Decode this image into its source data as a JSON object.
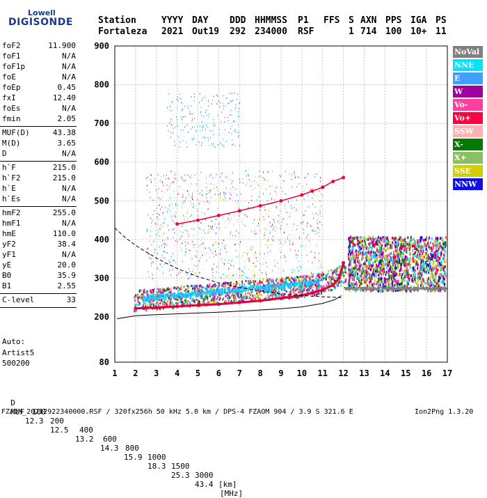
{
  "logo": {
    "top": "Lowell",
    "main": "DIGISONDE"
  },
  "header": {
    "line1": [
      "Station",
      "YYYY",
      "DAY",
      "DDD",
      "HHMMSS",
      "P1",
      "FFS",
      "S",
      "AXN",
      "PPS",
      "IGA",
      "PS"
    ],
    "line2": [
      "Fortaleza",
      "2021",
      "Out19",
      "292",
      "234000",
      "RSF",
      "",
      "1",
      "714",
      "100",
      "10+",
      "11"
    ]
  },
  "params": [
    {
      "group": 1,
      "name": "foF2",
      "value": "11.900"
    },
    {
      "group": 1,
      "name": "foF1",
      "value": "N/A"
    },
    {
      "group": 1,
      "name": "foF1p",
      "value": "N/A"
    },
    {
      "group": 1,
      "name": "foE",
      "value": "N/A"
    },
    {
      "group": 1,
      "name": "foEp",
      "value": "0.45"
    },
    {
      "group": 1,
      "name": "fxI",
      "value": "12.40"
    },
    {
      "group": 1,
      "name": "foEs",
      "value": "N/A"
    },
    {
      "group": 1,
      "name": "fmin",
      "value": "2.05"
    },
    {
      "group": 2,
      "name": "MUF(D)",
      "value": "43.38"
    },
    {
      "group": 2,
      "name": "M(D)",
      "value": "3.65"
    },
    {
      "group": 2,
      "name": "D",
      "value": "N/A"
    },
    {
      "group": 3,
      "name": "h`F",
      "value": "215.0"
    },
    {
      "group": 3,
      "name": "h`F2",
      "value": "215.0"
    },
    {
      "group": 3,
      "name": "h`E",
      "value": "N/A"
    },
    {
      "group": 3,
      "name": "h`Es",
      "value": "N/A"
    },
    {
      "group": 4,
      "name": "hmF2",
      "value": "255.0"
    },
    {
      "group": 4,
      "name": "hmF1",
      "value": "N/A"
    },
    {
      "group": 4,
      "name": "hmE",
      "value": "110.0"
    },
    {
      "group": 4,
      "name": "yF2",
      "value": "38.4"
    },
    {
      "group": 4,
      "name": "yF1",
      "value": "N/A"
    },
    {
      "group": 4,
      "name": "yE",
      "value": "20.0"
    },
    {
      "group": 4,
      "name": "B0",
      "value": "35.9"
    },
    {
      "group": 4,
      "name": "B1",
      "value": "2.55"
    },
    {
      "group": 5,
      "name": "C-level",
      "value": "33"
    }
  ],
  "autoscaling": {
    "line1": "Auto:",
    "line2": "Artist5",
    "line3": "500200"
  },
  "footer": {
    "d_label": "D",
    "d_values": [
      "100",
      "200",
      "400",
      "600",
      "800",
      "1000",
      "1500",
      "3000"
    ],
    "d_unit": "[km]",
    "muf_label": "MUF",
    "muf_values": [
      "12.3",
      "12.5",
      "13.2",
      "14.3",
      "15.9",
      "18.3",
      "25.3",
      "43.4"
    ],
    "muf_unit": "[MHz]",
    "file_info": "FZAOM_20212922340000.RSF / 320fx256h 50 kHz 5.0 km / DPS-4 FZAOM 904 / 3.9 S 321.6 E",
    "version": "Ion2Png 1.3.20"
  },
  "legend": [
    {
      "label": "NoVal",
      "color": "#808080"
    },
    {
      "label": "NNE",
      "color": "#00e5ff"
    },
    {
      "label": "E",
      "color": "#3fa0ff"
    },
    {
      "label": "W",
      "color": "#a000a0"
    },
    {
      "label": "Vo-",
      "color": "#ff3fa0"
    },
    {
      "label": "Vo+",
      "color": "#ff0040"
    },
    {
      "label": "SSW",
      "color": "#ffb0b0"
    },
    {
      "label": "X-",
      "color": "#007a00"
    },
    {
      "label": "X+",
      "color": "#8ac060"
    },
    {
      "label": "SSE",
      "color": "#d0d000"
    },
    {
      "label": "NNW",
      "color": "#1010e0"
    }
  ],
  "chart_data": {
    "type": "scatter",
    "xlabel": "",
    "ylabel": "",
    "xlim": [
      1,
      17
    ],
    "ylim": [
      80,
      900
    ],
    "x_ticks": [
      1,
      2,
      3,
      4,
      5,
      6,
      7,
      8,
      9,
      10,
      11,
      12,
      13,
      14,
      15,
      16,
      17
    ],
    "y_ticks": [
      80,
      200,
      300,
      400,
      500,
      600,
      700,
      800,
      900
    ],
    "x_tick_labels": [
      "1",
      "2",
      "3",
      "4",
      "5",
      "6",
      "7",
      "8",
      "9",
      "10",
      "11",
      "12",
      "13",
      "14",
      "15",
      "16",
      "17"
    ],
    "y_tick_labels": [
      "80",
      "200",
      "300",
      "400",
      "500",
      "600",
      "700",
      "800",
      "900"
    ],
    "grid": true,
    "legend_position": "right",
    "traces": [
      {
        "name": "Vo+",
        "x": [
          2.0,
          3.0,
          4.0,
          5.0,
          6.0,
          7.0,
          8.0,
          9.0,
          10.0,
          10.5,
          11.0,
          11.5,
          11.8,
          12.0
        ],
        "y": [
          222,
          224,
          227,
          230,
          233,
          237,
          242,
          248,
          256,
          262,
          270,
          282,
          300,
          340
        ]
      },
      {
        "name": "Vo+",
        "x": [
          4.0,
          5.0,
          6.0,
          7.0,
          8.0,
          9.0,
          10.0,
          10.5,
          11.0,
          11.5,
          12.0
        ],
        "y": [
          440,
          450,
          462,
          474,
          487,
          500,
          515,
          525,
          535,
          550,
          560
        ]
      }
    ],
    "profile_curve": {
      "x": [
        1.1,
        2.0,
        3.0,
        4.0,
        5.0,
        6.0,
        7.0,
        8.0,
        9.0,
        10.0,
        11.0,
        11.6,
        11.9
      ],
      "y": [
        195,
        203,
        206,
        208,
        210,
        212,
        215,
        218,
        221,
        226,
        235,
        245,
        255
      ]
    },
    "model_curve": {
      "x": [
        1.0,
        1.5,
        2.0,
        2.5,
        3.0,
        3.5,
        4.0,
        4.5,
        5.0,
        5.5,
        6.0,
        7.0,
        8.0,
        9.0,
        10.0,
        11.0,
        11.9
      ],
      "y": [
        430,
        405,
        385,
        368,
        352,
        338,
        325,
        314,
        304,
        296,
        288,
        276,
        267,
        260,
        255,
        252,
        250
      ]
    }
  }
}
